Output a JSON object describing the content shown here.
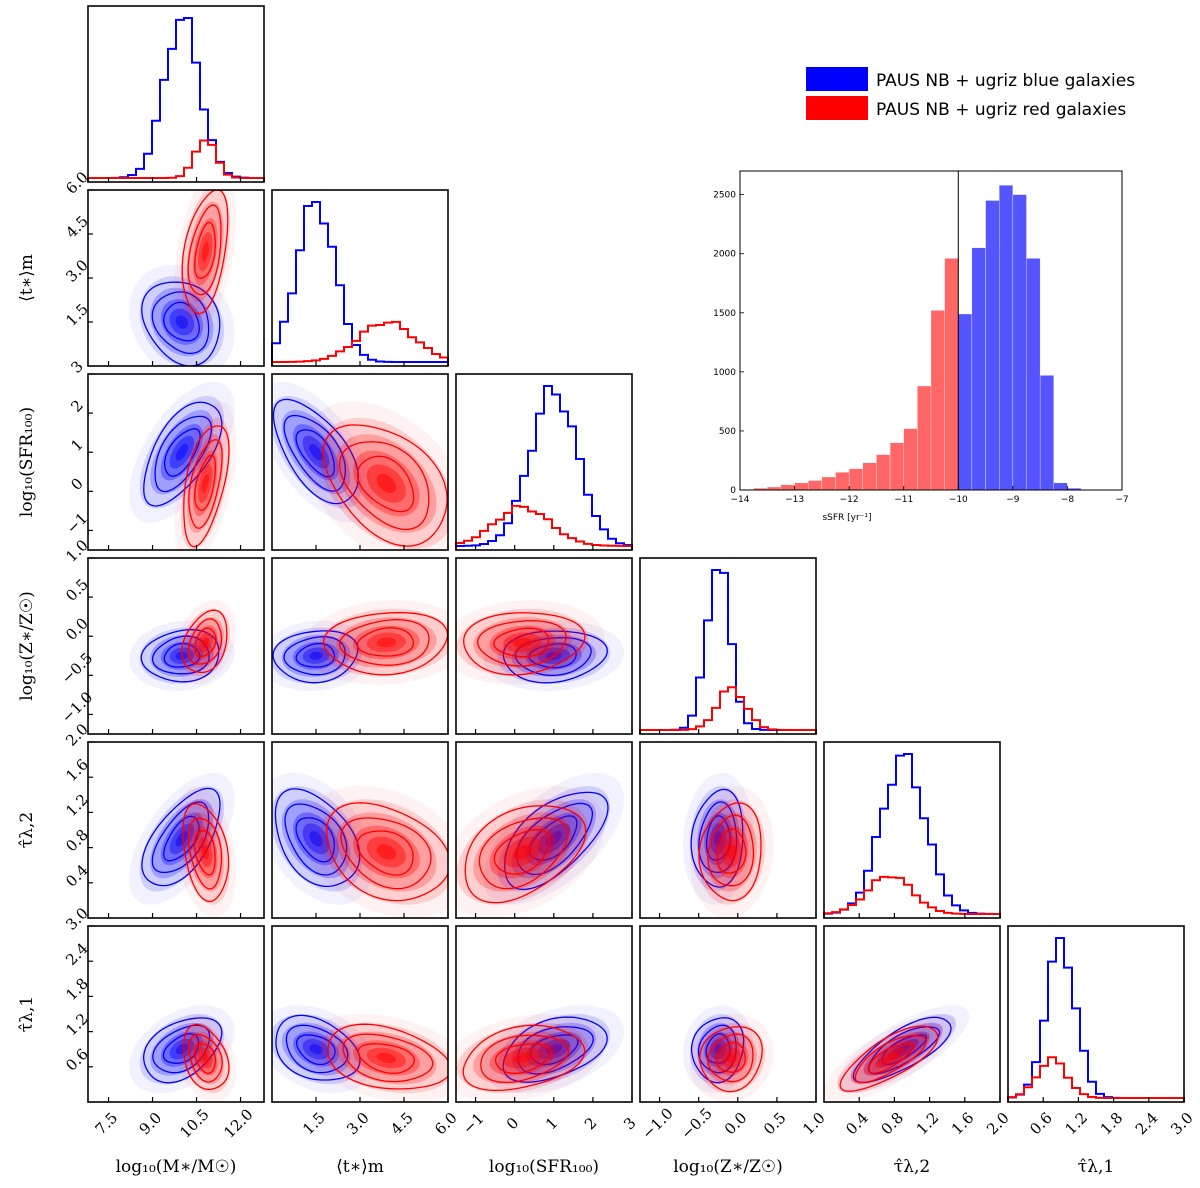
{
  "chart_data": [
    {
      "type": "corner",
      "title": "",
      "colors": {
        "blue": "#0000ff",
        "red": "#ff0000"
      },
      "legend": [
        {
          "label": "PAUS NB + ugriz blue galaxies",
          "color": "#0000ff"
        },
        {
          "label": "PAUS NB + ugriz red galaxies",
          "color": "#ff0000"
        }
      ],
      "legend_placement": "top-right",
      "params": [
        {
          "id": "logM",
          "label": "log₁₀(M∗/M☉)",
          "range": [
            6.8,
            12.8
          ],
          "ticks": [
            {
              "v": 7.5,
              "t": "7.5"
            },
            {
              "v": 9.0,
              "t": "9.0"
            },
            {
              "v": 10.5,
              "t": "10.5"
            },
            {
              "v": 12.0,
              "t": "12.0"
            }
          ]
        },
        {
          "id": "tm",
          "label": "⟨t∗⟩m",
          "range": [
            0.0,
            6.0
          ],
          "ticks": [
            {
              "v": 1.5,
              "t": "1.5"
            },
            {
              "v": 3.0,
              "t": "3.0"
            },
            {
              "v": 4.5,
              "t": "4.5"
            },
            {
              "v": 6.0,
              "t": "6.0"
            }
          ]
        },
        {
          "id": "sfr",
          "label": "log₁₀(SFR₁₀₀)",
          "range": [
            -1.5,
            3.0
          ],
          "ticks": [
            {
              "v": -1,
              "t": "−1"
            },
            {
              "v": 0,
              "t": "0"
            },
            {
              "v": 1,
              "t": "1"
            },
            {
              "v": 2,
              "t": "2"
            },
            {
              "v": 3,
              "t": "3"
            }
          ]
        },
        {
          "id": "Z",
          "label": "log₁₀(Z∗/Z☉)",
          "range": [
            -1.25,
            1.0
          ],
          "ticks": [
            {
              "v": -1.0,
              "t": "−1.0"
            },
            {
              "v": -0.5,
              "t": "−0.5"
            },
            {
              "v": 0.0,
              "t": "0.0"
            },
            {
              "v": 0.5,
              "t": "0.5"
            },
            {
              "v": 1.0,
              "t": "1.0"
            }
          ]
        },
        {
          "id": "tau2",
          "label": "τ̂λ,2",
          "range": [
            0.0,
            2.0
          ],
          "ticks": [
            {
              "v": 0.4,
              "t": "0.4"
            },
            {
              "v": 0.8,
              "t": "0.8"
            },
            {
              "v": 1.2,
              "t": "1.2"
            },
            {
              "v": 1.6,
              "t": "1.6"
            },
            {
              "v": 2.0,
              "t": "2.0"
            }
          ]
        },
        {
          "id": "tau1",
          "label": "τ̂λ,1",
          "range": [
            0.0,
            3.0
          ],
          "ticks": [
            {
              "v": 0.6,
              "t": "0.6"
            },
            {
              "v": 1.2,
              "t": "1.2"
            },
            {
              "v": 1.8,
              "t": "1.8"
            },
            {
              "v": 2.4,
              "t": "2.4"
            },
            {
              "v": 3.0,
              "t": "3.0"
            }
          ]
        }
      ],
      "populations": {
        "blue": {
          "mean": [
            10.0,
            1.5,
            1.0,
            -0.25,
            0.9,
            0.9
          ],
          "sd": [
            0.6,
            0.65,
            0.6,
            0.15,
            0.25,
            0.25
          ],
          "weight": 1.0
        },
        "red": {
          "mean": [
            10.8,
            3.9,
            0.2,
            -0.08,
            0.75,
            0.75
          ],
          "sd": [
            0.35,
            0.95,
            0.7,
            0.18,
            0.25,
            0.25
          ],
          "weight": 0.25
        }
      },
      "correlations": {
        "blue": [
          [
            1,
            -0.2,
            0.6,
            0.1,
            0.6,
            0.4
          ],
          [
            -0.2,
            1,
            -0.6,
            0.1,
            -0.4,
            -0.3
          ],
          [
            0.6,
            -0.6,
            1,
            0.1,
            0.6,
            0.4
          ],
          [
            0.1,
            0.1,
            0.1,
            1,
            0.1,
            0.1
          ],
          [
            0.6,
            -0.4,
            0.6,
            0.1,
            1,
            0.75
          ],
          [
            0.4,
            -0.3,
            0.4,
            0.1,
            0.75,
            1
          ]
        ],
        "red": [
          [
            1,
            0.4,
            0.5,
            0.3,
            -0.3,
            -0.3
          ],
          [
            0.4,
            1,
            -0.4,
            0.1,
            -0.3,
            -0.3
          ],
          [
            0.5,
            -0.4,
            1,
            0.1,
            0.4,
            0.3
          ],
          [
            0.3,
            0.1,
            0.1,
            1,
            0.1,
            0.1
          ],
          [
            -0.3,
            -0.3,
            0.4,
            0.1,
            1,
            0.75
          ],
          [
            -0.3,
            -0.3,
            0.3,
            0.1,
            0.75,
            1
          ]
        ]
      },
      "contour_levels_sigma": [
        1.0,
        1.6,
        2.2
      ]
    },
    {
      "type": "bar",
      "title": "",
      "xlabel": "sSFR [yr⁻¹]",
      "ylabel": "",
      "xlim": [
        -14,
        -7
      ],
      "ylim": [
        0,
        2700
      ],
      "xticks": [
        -14,
        -13,
        -12,
        -11,
        -10,
        -9,
        -8,
        -7
      ],
      "yticks": [
        0,
        500,
        1000,
        1500,
        2000,
        2500
      ],
      "bin_width": 0.25,
      "divider_x": -10,
      "series": [
        {
          "name": "red",
          "color": "#ff6666",
          "bin_starts": [
            -14.0,
            -13.75,
            -13.5,
            -13.25,
            -13.0,
            -12.75,
            -12.5,
            -12.25,
            -12.0,
            -11.75,
            -11.5,
            -11.25,
            -11.0,
            -10.75,
            -10.5,
            -10.25
          ],
          "values": [
            5,
            15,
            25,
            45,
            60,
            80,
            110,
            150,
            180,
            230,
            300,
            400,
            520,
            880,
            1520,
            1960
          ]
        },
        {
          "name": "blue",
          "color": "#5555ff",
          "bin_starts": [
            -10.0,
            -9.75,
            -9.5,
            -9.25,
            -9.0,
            -8.75,
            -8.5,
            -8.25,
            -8.0
          ],
          "values": [
            1490,
            2050,
            2450,
            2580,
            2500,
            1960,
            970,
            60,
            15
          ]
        }
      ]
    }
  ]
}
